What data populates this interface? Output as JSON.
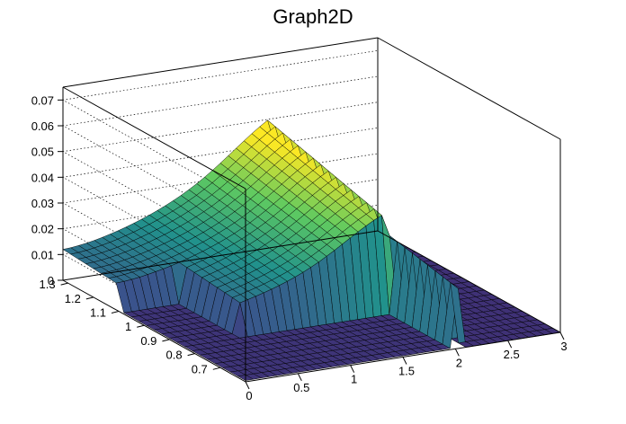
{
  "chart_data": {
    "type": "surface",
    "title": "Graph2D",
    "xlabel": "",
    "ylabel": "",
    "zlabel": "",
    "xlim": [
      0,
      3
    ],
    "ylim": [
      0.6,
      1.32
    ],
    "zlim": [
      0,
      0.075
    ],
    "x_ticks": [
      "0",
      "0.5",
      "1",
      "1.5",
      "2",
      "2.5",
      "3"
    ],
    "y_ticks": [
      "0.7",
      "0.8",
      "0.9",
      "1",
      "1.1",
      "1.2",
      "1.3"
    ],
    "z_ticks": [
      "0",
      "0.01",
      "0.02",
      "0.03",
      "0.04",
      "0.05",
      "0.06",
      "0.07"
    ],
    "grid": true,
    "colormap": "viridis",
    "surface_peak": {
      "x": 2.0,
      "y": 1.3,
      "z": 0.045
    },
    "surface_description_values": {
      "plateau_z_at_x0_y1.3": 0.012,
      "edge_x": 2.05,
      "inner_edge_x": 0.55
    }
  }
}
